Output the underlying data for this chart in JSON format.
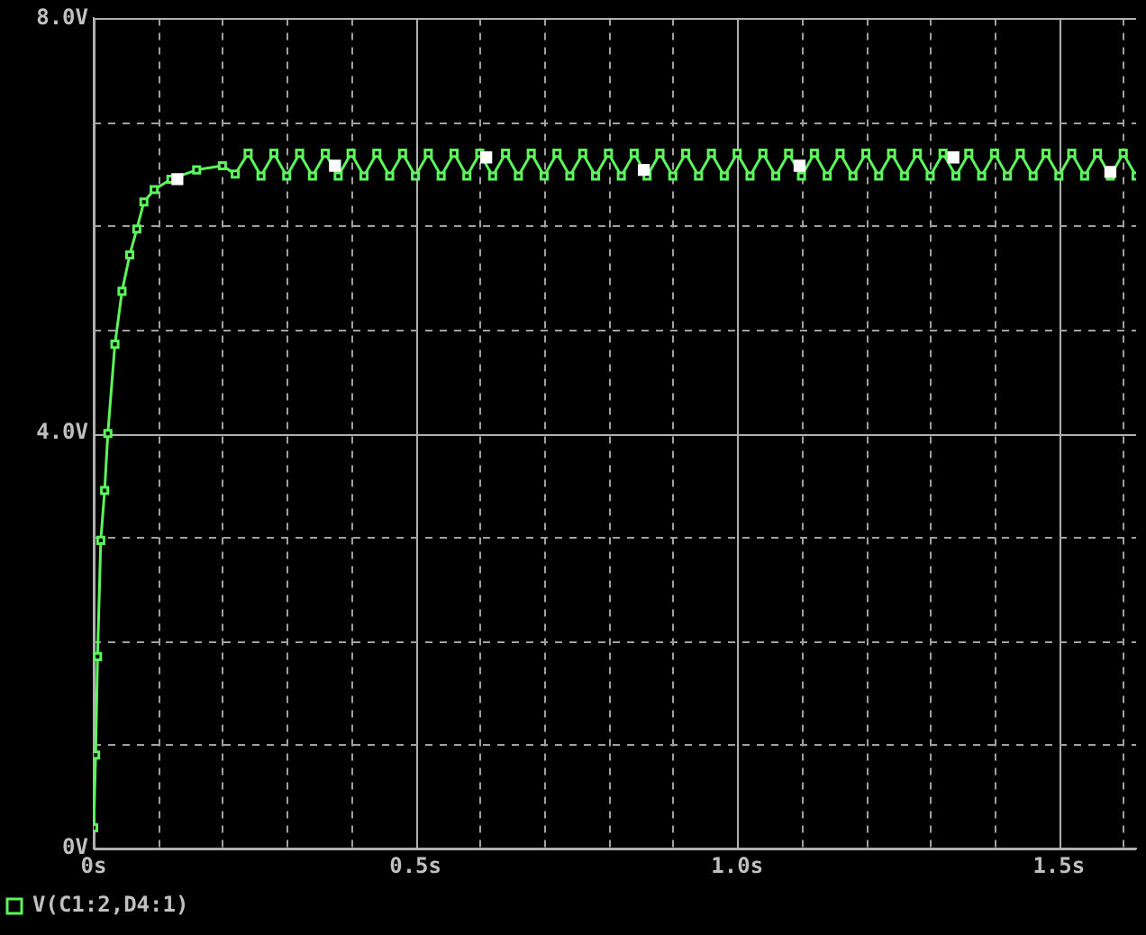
{
  "chart_data": {
    "type": "line",
    "xlim": [
      0,
      1.62
    ],
    "ylim": [
      0,
      8
    ],
    "xticks": [
      {
        "value": 0,
        "label": "0s"
      },
      {
        "value": 0.1,
        "label": null
      },
      {
        "value": 0.2,
        "label": null
      },
      {
        "value": 0.3,
        "label": null
      },
      {
        "value": 0.4,
        "label": null
      },
      {
        "value": 0.5,
        "label": "0.5s"
      },
      {
        "value": 0.6,
        "label": null
      },
      {
        "value": 0.7,
        "label": null
      },
      {
        "value": 0.8,
        "label": null
      },
      {
        "value": 0.9,
        "label": null
      },
      {
        "value": 1.0,
        "label": "1.0s"
      },
      {
        "value": 1.1,
        "label": null
      },
      {
        "value": 1.2,
        "label": null
      },
      {
        "value": 1.3,
        "label": null
      },
      {
        "value": 1.4,
        "label": null
      },
      {
        "value": 1.5,
        "label": "1.5s"
      },
      {
        "value": 1.6,
        "label": null
      }
    ],
    "yticks": [
      {
        "value": 0,
        "label": "0V"
      },
      {
        "value": 1,
        "label": null
      },
      {
        "value": 2,
        "label": null
      },
      {
        "value": 3,
        "label": null
      },
      {
        "value": 4,
        "label": "4.0V"
      },
      {
        "value": 5,
        "label": null
      },
      {
        "value": 6,
        "label": null
      },
      {
        "value": 7,
        "label": null
      },
      {
        "value": 8,
        "label": "8.0V"
      }
    ],
    "grid": true,
    "legend": "bottom left",
    "line_style": "solid",
    "series": [
      {
        "name": "V(C1:2,D4:1)",
        "color": "#5cf55c",
        "marker": "square",
        "x": [
          0,
          0.003,
          0.006,
          0.011,
          0.017,
          0.022,
          0.033,
          0.044,
          0.056,
          0.067,
          0.078,
          0.094,
          0.12,
          0.16,
          0.2,
          0.22,
          0.24,
          0.26,
          0.28,
          0.3,
          0.32,
          0.34,
          0.36,
          0.38,
          0.4,
          0.42,
          0.44,
          0.46,
          0.48,
          0.5,
          0.52,
          0.54,
          0.56,
          0.58,
          0.6,
          0.62,
          0.64,
          0.66,
          0.68,
          0.7,
          0.72,
          0.74,
          0.76,
          0.78,
          0.8,
          0.82,
          0.84,
          0.86,
          0.88,
          0.9,
          0.92,
          0.94,
          0.96,
          0.98,
          1.0,
          1.02,
          1.04,
          1.06,
          1.08,
          1.1,
          1.12,
          1.14,
          1.16,
          1.18,
          1.2,
          1.22,
          1.24,
          1.26,
          1.28,
          1.3,
          1.32,
          1.34,
          1.36,
          1.38,
          1.4,
          1.42,
          1.44,
          1.46,
          1.48,
          1.5,
          1.52,
          1.54,
          1.56,
          1.58,
          1.6,
          1.62
        ],
        "values": [
          0.2,
          0.9,
          1.85,
          2.97,
          3.45,
          4.0,
          4.86,
          5.37,
          5.72,
          5.97,
          6.23,
          6.35,
          6.45,
          6.54,
          6.58,
          6.5,
          6.7,
          6.48,
          6.7,
          6.48,
          6.7,
          6.48,
          6.7,
          6.48,
          6.7,
          6.48,
          6.7,
          6.48,
          6.7,
          6.48,
          6.7,
          6.48,
          6.7,
          6.48,
          6.7,
          6.48,
          6.7,
          6.48,
          6.7,
          6.48,
          6.7,
          6.48,
          6.7,
          6.48,
          6.7,
          6.48,
          6.7,
          6.48,
          6.7,
          6.48,
          6.7,
          6.48,
          6.7,
          6.48,
          6.7,
          6.48,
          6.7,
          6.48,
          6.7,
          6.48,
          6.7,
          6.48,
          6.7,
          6.48,
          6.7,
          6.48,
          6.7,
          6.48,
          6.7,
          6.48,
          6.7,
          6.48,
          6.7,
          6.48,
          6.7,
          6.48,
          6.7,
          6.48,
          6.7,
          6.48,
          6.7,
          6.48,
          6.7,
          6.48,
          6.7,
          6.48
        ]
      },
      {
        "type": "scatter",
        "color": "#ffffff",
        "marker": "square",
        "x": [
          0.13,
          0.375,
          0.61,
          0.855,
          1.097,
          1.336,
          1.58
        ],
        "values": [
          6.45,
          6.58,
          6.66,
          6.54,
          6.58,
          6.66,
          6.52
        ]
      }
    ]
  }
}
